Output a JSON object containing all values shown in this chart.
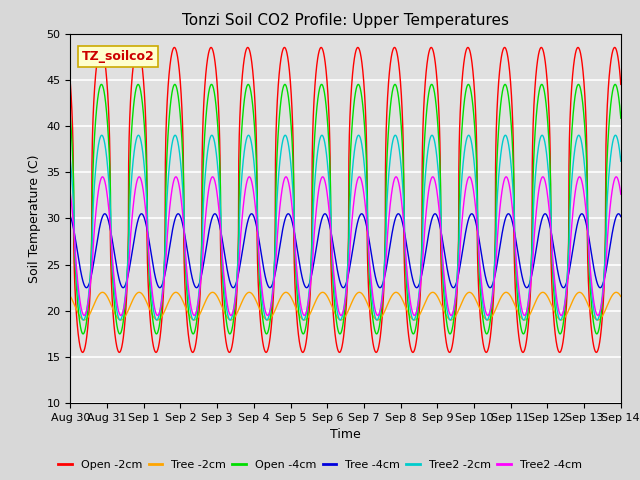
{
  "title": "Tonzi Soil CO2 Profile: Upper Temperatures",
  "xlabel": "Time",
  "ylabel": "Soil Temperature (C)",
  "ylim": [
    10,
    50
  ],
  "n_days": 15,
  "legend_label": "TZ_soilco2",
  "x_tick_labels": [
    "Aug 30",
    "Aug 31",
    "Sep 1",
    "Sep 2",
    "Sep 3",
    "Sep 4",
    "Sep 5",
    "Sep 6",
    "Sep 7",
    "Sep 8",
    "Sep 9",
    "Sep 10",
    "Sep 11",
    "Sep 12",
    "Sep 13",
    "Sep 14"
  ],
  "series": [
    {
      "label": "Open -2cm",
      "color": "#ff0000",
      "amplitude": 16.5,
      "mean": 32.0,
      "phase_hours": 14.0,
      "sharp": 2.5
    },
    {
      "label": "Tree -2cm",
      "color": "#ffa500",
      "amplitude": 1.5,
      "mean": 20.5,
      "phase_hours": 15.0,
      "sharp": 1.0
    },
    {
      "label": "Open -4cm",
      "color": "#00dd00",
      "amplitude": 13.5,
      "mean": 31.0,
      "phase_hours": 14.3,
      "sharp": 1.8
    },
    {
      "label": "Tree -4cm",
      "color": "#0000dd",
      "amplitude": 4.0,
      "mean": 26.5,
      "phase_hours": 16.5,
      "sharp": 1.0
    },
    {
      "label": "Tree2 -2cm",
      "color": "#00cccc",
      "amplitude": 10.0,
      "mean": 29.0,
      "phase_hours": 14.5,
      "sharp": 1.5
    },
    {
      "label": "Tree2 -4cm",
      "color": "#ff00ff",
      "amplitude": 7.5,
      "mean": 27.0,
      "phase_hours": 15.0,
      "sharp": 1.2
    }
  ],
  "bg_color": "#e0e0e0",
  "grid_color": "#ffffff",
  "fig_bg_color": "#d8d8d8",
  "annotation_box_color": "#ffffcc",
  "annotation_border_color": "#ccaa00",
  "annotation_text_color": "#cc0000",
  "title_fontsize": 11,
  "axis_label_fontsize": 9,
  "tick_fontsize": 8,
  "legend_fontsize": 8
}
